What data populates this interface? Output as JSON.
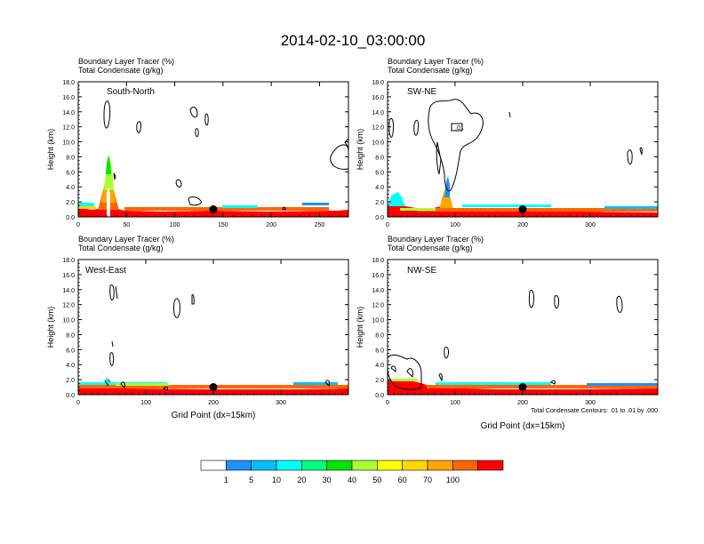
{
  "figure_title": "2014-02-10_03:00:00",
  "panel_header_line1": "Boundary Layer Tracer   (%)",
  "panel_header_line2": "Total Condensate   (g/kg)",
  "ylabel": "Height (km)",
  "xlabel": "Grid Point (dx=15km)",
  "contour_note": "Total Condensate Contours: .01 to .01 by .000",
  "colorbar": {
    "colors": [
      "#ffffff",
      "#1e90ff",
      "#00bfff",
      "#00ffff",
      "#00ff7f",
      "#00e600",
      "#aaff33",
      "#ffff00",
      "#ffd700",
      "#ffa500",
      "#ff6600",
      "#ff0000"
    ],
    "labels": [
      "1",
      "5",
      "10",
      "20",
      "30",
      "40",
      "50",
      "60",
      "70",
      "100"
    ]
  },
  "contour_label": ".01",
  "chart_data": [
    {
      "type": "heatmap",
      "panel": "South-North",
      "xlim": [
        0,
        280
      ],
      "ylim": [
        0,
        18
      ],
      "xticks": [
        "0",
        "50",
        "100",
        "150",
        "200",
        "250"
      ],
      "yticks": [
        "0.0",
        "2.0",
        "4.0",
        "6.0",
        "8.0",
        "10.0",
        "12.0",
        "14.0",
        "16.0",
        "18.0"
      ],
      "boundary_layer_top_km": [
        {
          "x": 0,
          "y": 1.6
        },
        {
          "x": 20,
          "y": 1.6
        },
        {
          "x": 30,
          "y": 8.6
        },
        {
          "x": 40,
          "y": 1.5
        },
        {
          "x": 100,
          "y": 1.2
        },
        {
          "x": 140,
          "y": 1.4
        },
        {
          "x": 200,
          "y": 1.2
        },
        {
          "x": 280,
          "y": 1.8
        }
      ],
      "marker": {
        "x": 140,
        "y": 1.0
      }
    },
    {
      "type": "heatmap",
      "panel": "SW-NE",
      "xlim": [
        0,
        400
      ],
      "ylim": [
        0,
        18
      ],
      "xticks": [
        "0",
        "100",
        "200",
        "300"
      ],
      "yticks": [
        "0.0",
        "2.0",
        "4.0",
        "6.0",
        "8.0",
        "10.0",
        "12.0",
        "14.0",
        "16.0",
        "18.0"
      ],
      "boundary_layer_top_km": [
        {
          "x": 0,
          "y": 1.5
        },
        {
          "x": 15,
          "y": 3.2
        },
        {
          "x": 60,
          "y": 1.2
        },
        {
          "x": 88,
          "y": 4.5
        },
        {
          "x": 120,
          "y": 1.4
        },
        {
          "x": 250,
          "y": 1.3
        },
        {
          "x": 400,
          "y": 1.0
        }
      ],
      "marker": {
        "x": 200,
        "y": 1.0
      }
    },
    {
      "type": "heatmap",
      "panel": "West-East",
      "xlim": [
        0,
        400
      ],
      "ylim": [
        0,
        18
      ],
      "xticks": [
        "0",
        "100",
        "200",
        "300"
      ],
      "yticks": [
        "0.0",
        "2.0",
        "4.0",
        "6.0",
        "8.0",
        "10.0",
        "12.0",
        "14.0",
        "16.0",
        "18.0"
      ],
      "boundary_layer_top_km": [
        {
          "x": 0,
          "y": 1.2
        },
        {
          "x": 45,
          "y": 2.0
        },
        {
          "x": 100,
          "y": 1.3
        },
        {
          "x": 200,
          "y": 1.2
        },
        {
          "x": 300,
          "y": 1.2
        },
        {
          "x": 400,
          "y": 1.4
        }
      ],
      "marker": {
        "x": 200,
        "y": 1.0
      }
    },
    {
      "type": "heatmap",
      "panel": "NW-SE",
      "xlim": [
        0,
        400
      ],
      "ylim": [
        0,
        18
      ],
      "xticks": [
        "0",
        "100",
        "200",
        "300"
      ],
      "yticks": [
        "0.0",
        "2.0",
        "4.0",
        "6.0",
        "8.0",
        "10.0",
        "12.0",
        "14.0",
        "16.0",
        "18.0"
      ],
      "boundary_layer_top_km": [
        {
          "x": 0,
          "y": 2.0
        },
        {
          "x": 40,
          "y": 1.8
        },
        {
          "x": 100,
          "y": 1.2
        },
        {
          "x": 200,
          "y": 1.2
        },
        {
          "x": 300,
          "y": 1.3
        },
        {
          "x": 400,
          "y": 1.4
        }
      ],
      "marker": {
        "x": 200,
        "y": 1.0
      }
    }
  ]
}
